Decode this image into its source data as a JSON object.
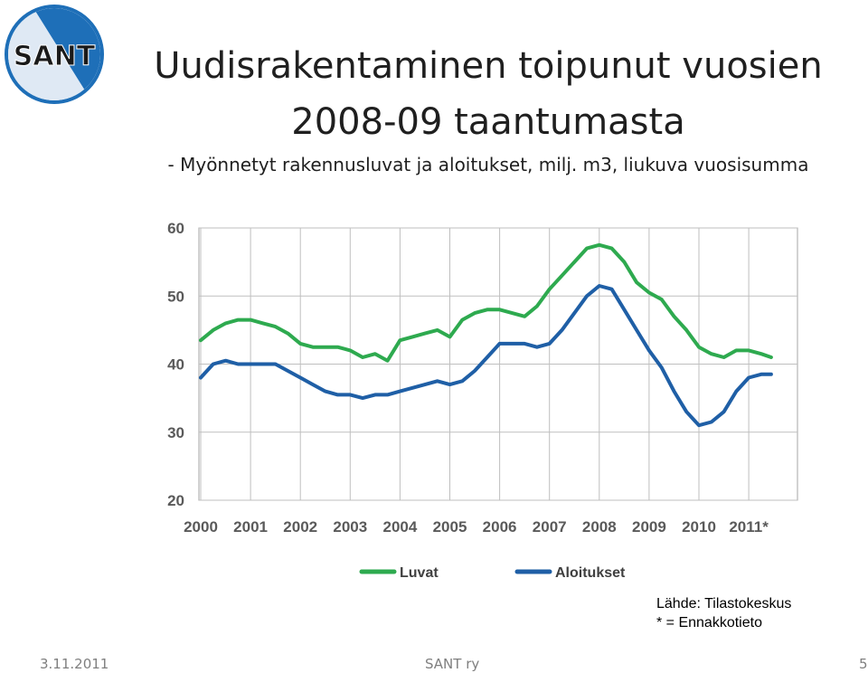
{
  "logo": {
    "text": "SANT",
    "colors": {
      "ring": "#1e6fb8",
      "blue": "#1e6fb8",
      "light": "#dfe9f4",
      "text": "#1a1a1a"
    }
  },
  "header": {
    "title_line1": "Uudisrakentaminen toipunut vuosien",
    "title_line2": "2008-09 taantumasta",
    "subtitle": "- Myönnetyt rakennusluvat ja aloitukset, milj. m3, liukuva vuosisumma"
  },
  "source": {
    "line1": "Lähde: Tilastokeskus",
    "line2": "* = Ennakkotieto"
  },
  "footer": {
    "date": "3.11.2011",
    "center": "SANT ry",
    "page": "5"
  },
  "chart_data": {
    "type": "line",
    "x_categories": [
      "2000",
      "2001",
      "2002",
      "2003",
      "2004",
      "2005",
      "2006",
      "2007",
      "2008",
      "2009",
      "2010",
      "2011*"
    ],
    "ylim": [
      20,
      60
    ],
    "yticks": [
      "20",
      "30",
      "40",
      "50",
      "60"
    ],
    "grid": true,
    "legend_position": "bottom",
    "colors": {
      "Luvat": "#2eaa4f",
      "Aloitukset": "#1f5fa6"
    },
    "series": [
      {
        "name": "Luvat",
        "x": [
          2000.0,
          2000.25,
          2000.5,
          2000.75,
          2001.0,
          2001.25,
          2001.5,
          2001.75,
          2002.0,
          2002.25,
          2002.5,
          2002.75,
          2003.0,
          2003.25,
          2003.5,
          2003.75,
          2004.0,
          2004.25,
          2004.5,
          2004.75,
          2005.0,
          2005.25,
          2005.5,
          2005.75,
          2006.0,
          2006.25,
          2006.5,
          2006.75,
          2007.0,
          2007.25,
          2007.5,
          2007.75,
          2008.0,
          2008.25,
          2008.5,
          2008.75,
          2009.0,
          2009.25,
          2009.5,
          2009.75,
          2010.0,
          2010.25,
          2010.5,
          2010.75,
          2011.0,
          2011.25,
          2011.45
        ],
        "y": [
          43.5,
          45,
          46,
          46.5,
          46.5,
          46,
          45.5,
          44.5,
          43,
          42.5,
          42.5,
          42.5,
          42,
          41,
          41.5,
          40.5,
          43.5,
          44,
          44.5,
          45,
          44,
          46.5,
          47.5,
          48,
          48,
          47.5,
          47,
          48.5,
          51,
          53,
          55,
          57,
          57.5,
          57,
          55,
          52,
          50.5,
          49.5,
          47,
          45,
          42.5,
          41.5,
          41,
          42,
          42,
          41.5,
          41
        ]
      },
      {
        "name": "Aloitukset",
        "x": [
          2000.0,
          2000.25,
          2000.5,
          2000.75,
          2001.0,
          2001.25,
          2001.5,
          2001.75,
          2002.0,
          2002.25,
          2002.5,
          2002.75,
          2003.0,
          2003.25,
          2003.5,
          2003.75,
          2004.0,
          2004.25,
          2004.5,
          2004.75,
          2005.0,
          2005.25,
          2005.5,
          2005.75,
          2006.0,
          2006.25,
          2006.5,
          2006.75,
          2007.0,
          2007.25,
          2007.5,
          2007.75,
          2008.0,
          2008.25,
          2008.5,
          2008.75,
          2009.0,
          2009.25,
          2009.5,
          2009.75,
          2010.0,
          2010.25,
          2010.5,
          2010.75,
          2011.0,
          2011.25,
          2011.45
        ],
        "y": [
          38,
          40,
          40.5,
          40,
          40,
          40,
          40,
          39,
          38,
          37,
          36,
          35.5,
          35.5,
          35,
          35.5,
          35.5,
          36,
          36.5,
          37,
          37.5,
          37,
          37.5,
          39,
          41,
          43,
          43,
          43,
          42.5,
          43,
          45,
          47.5,
          50,
          51.5,
          51,
          48,
          45,
          42,
          39.5,
          36,
          33,
          31,
          31.5,
          33,
          36,
          38,
          38.5,
          38.5
        ]
      }
    ]
  }
}
